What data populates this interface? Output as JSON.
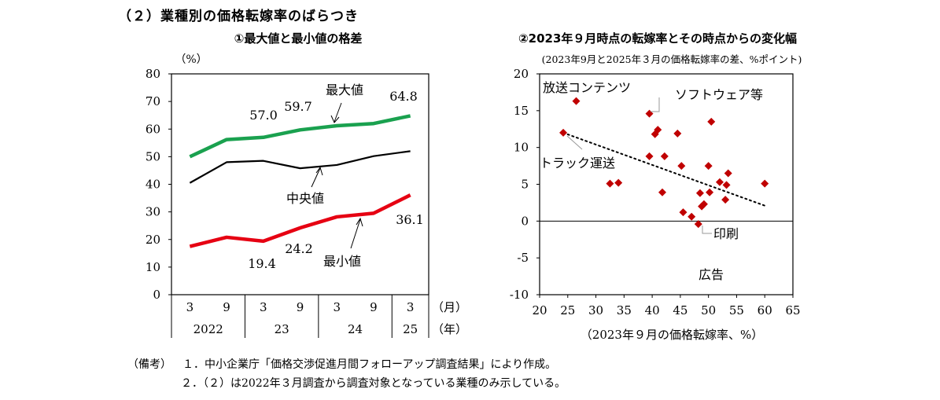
{
  "section_title": "（２）業種別の価格転嫁率のばらつき",
  "notes": {
    "lead": "（備考）",
    "line1": "１．中小企業庁「価格交渉促進月間フォローアップ調査結果」により作成。",
    "line2": "２．（２）は2022年３月調査から調査対象となっている業種のみ示している。"
  },
  "chart_data": [
    {
      "type": "line",
      "title": "①最大値と最小値の格差",
      "ylabel": "（%）",
      "ylim": [
        0,
        80
      ],
      "yticks": [
        "0",
        "10",
        "20",
        "30",
        "40",
        "50",
        "60",
        "70",
        "80"
      ],
      "x_month_labels": [
        "3",
        "9",
        "3",
        "9",
        "3",
        "9",
        "3"
      ],
      "x_month_unit": "（月）",
      "x_year_labels": [
        "2022",
        "23",
        "24",
        "25"
      ],
      "x_year_unit": "（年）",
      "series": [
        {
          "name": "最大値",
          "color": "#1aa14f",
          "values": [
            50.0,
            56.2,
            57.0,
            59.7,
            61.2,
            62.0,
            64.8
          ]
        },
        {
          "name": "中央値",
          "color": "#000000",
          "values": [
            40.5,
            48.0,
            48.5,
            45.8,
            47.0,
            50.2,
            52.0
          ]
        },
        {
          "name": "最小値",
          "color": "#e60012",
          "values": [
            17.5,
            20.8,
            19.4,
            24.2,
            28.2,
            29.5,
            36.1
          ]
        }
      ],
      "data_labels": {
        "max": [
          "57.0",
          "59.7",
          "64.8"
        ],
        "min": [
          "19.4",
          "24.2",
          "36.1"
        ]
      }
    },
    {
      "type": "scatter",
      "title": "②2023年９月時点の転嫁率とその時点からの変化幅",
      "subtitle": "(2023年9月と2025年３月の価格転嫁率の差、%ポイント)",
      "xlabel": "（2023年９月の価格転嫁率、%）",
      "xlim": [
        20,
        65
      ],
      "ylim": [
        -10,
        20
      ],
      "xticks": [
        "20",
        "25",
        "30",
        "35",
        "40",
        "45",
        "50",
        "55",
        "60",
        "65"
      ],
      "yticks": [
        "-10",
        "-5",
        "0",
        "5",
        "10",
        "15",
        "20"
      ],
      "marker_color": "#c00000",
      "points": [
        [
          24.2,
          12.0
        ],
        [
          26.5,
          16.3
        ],
        [
          32.5,
          5.1
        ],
        [
          34.0,
          5.2
        ],
        [
          39.5,
          14.6
        ],
        [
          39.5,
          8.8
        ],
        [
          40.5,
          11.8
        ],
        [
          41.0,
          12.4
        ],
        [
          41.8,
          3.9
        ],
        [
          42.2,
          8.8
        ],
        [
          44.5,
          11.9
        ],
        [
          45.2,
          7.5
        ],
        [
          45.5,
          1.2
        ],
        [
          47.0,
          0.6
        ],
        [
          48.2,
          -0.4
        ],
        [
          48.5,
          3.8
        ],
        [
          48.8,
          2.0
        ],
        [
          49.2,
          2.3
        ],
        [
          50.0,
          7.5
        ],
        [
          50.2,
          3.9
        ],
        [
          50.5,
          13.5
        ],
        [
          52.0,
          5.3
        ],
        [
          53.0,
          2.9
        ],
        [
          53.2,
          4.9
        ],
        [
          53.5,
          6.5
        ],
        [
          60.0,
          5.1
        ]
      ],
      "trendline": {
        "x": [
          24.2,
          60.0
        ],
        "y": [
          12.0,
          2.1
        ]
      },
      "annotations": [
        "放送コンテンツ",
        "ソフトウェア等",
        "トラック運送",
        "印刷",
        "広告"
      ]
    }
  ]
}
